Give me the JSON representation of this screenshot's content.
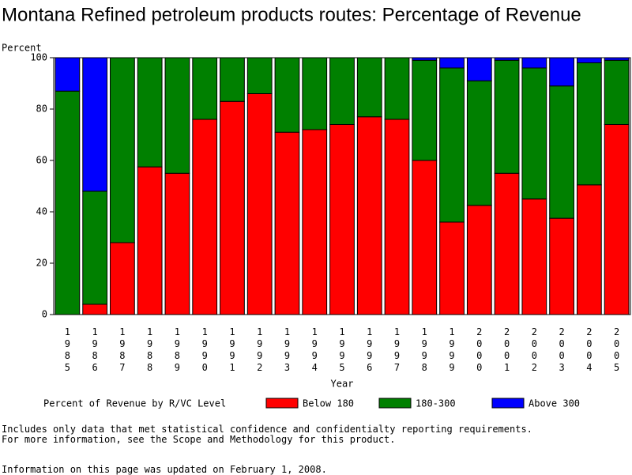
{
  "chart_data": {
    "type": "stacked_bar",
    "title": "Montana Refined petroleum products routes: Percentage of Revenue",
    "y_label": "Percent",
    "x_label": "Year",
    "legend_title": "Percent of Revenue by R/VC Level",
    "categories": [
      "1985",
      "1986",
      "1987",
      "1988",
      "1989",
      "1990",
      "1991",
      "1992",
      "1993",
      "1994",
      "1995",
      "1996",
      "1997",
      "1998",
      "1999",
      "2000",
      "2001",
      "2002",
      "2003",
      "2004",
      "2005"
    ],
    "series": [
      {
        "name": "Below 180",
        "color": "#ff0000",
        "values": [
          0,
          4,
          28,
          57.5,
          55,
          76,
          83,
          86,
          71,
          72,
          74,
          77,
          76,
          60,
          36,
          42.5,
          55,
          45,
          37.5,
          50.5,
          74
        ]
      },
      {
        "name": "180-300",
        "color": "#008000",
        "values": [
          87,
          44,
          72,
          42.5,
          45,
          24,
          17,
          14,
          29,
          28,
          26,
          23,
          24,
          39,
          60,
          48.5,
          44,
          51,
          51.5,
          47.5,
          25
        ]
      },
      {
        "name": "Above 300",
        "color": "#0000ff",
        "values": [
          13,
          52,
          0,
          0,
          0,
          0,
          0,
          0,
          0,
          0,
          0,
          0,
          0,
          1,
          4,
          9,
          1,
          4,
          11,
          2,
          1
        ]
      }
    ],
    "ylim": [
      0,
      100
    ],
    "yticks": [
      0,
      20,
      40,
      60,
      80,
      100
    ],
    "grid": false
  },
  "footnotes": [
    "Includes only data that met statistical confidence and confidentialty reporting requirements.",
    "For more information, see the Scope and Methodology for this product.",
    "Information on this page was updated on February 1, 2008."
  ]
}
